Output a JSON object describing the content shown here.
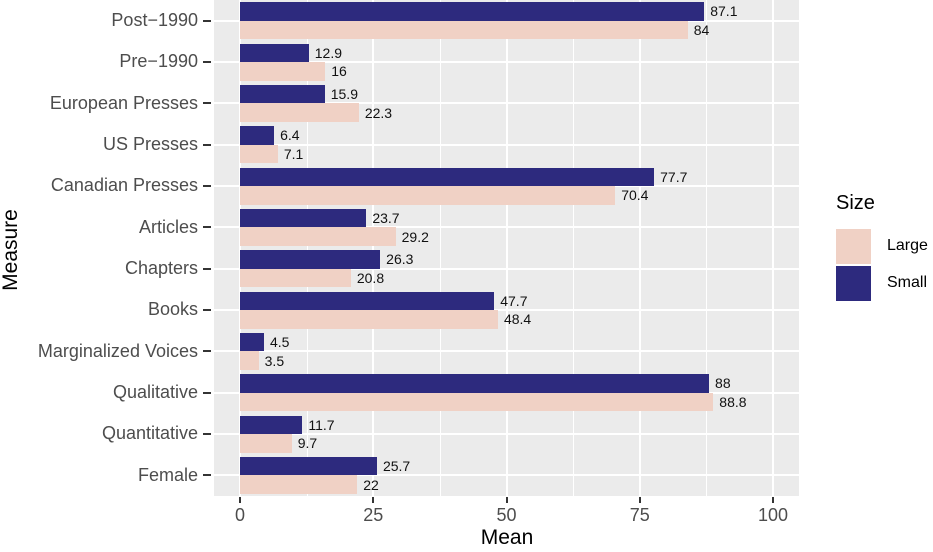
{
  "chart_data": {
    "type": "bar",
    "orientation": "horizontal",
    "title": "",
    "xlabel": "Mean",
    "ylabel": "Measure",
    "categories": [
      "Post−1990",
      "Pre−1990",
      "European Presses",
      "US Presses",
      "Canadian Presses",
      "Articles",
      "Chapters",
      "Books",
      "Marginalized Voices",
      "Qualitative",
      "Quantitative",
      "Female"
    ],
    "series": [
      {
        "name": "Small",
        "color": "#2d2a7e",
        "values": [
          87.1,
          12.9,
          15.9,
          6.4,
          77.7,
          23.7,
          26.3,
          47.7,
          4.5,
          88,
          11.7,
          25.7
        ]
      },
      {
        "name": "Large",
        "color": "#f0d1c5",
        "values": [
          84,
          16,
          22.3,
          7.1,
          70.4,
          29.2,
          20.8,
          48.4,
          3.5,
          88.8,
          9.7,
          22
        ]
      }
    ],
    "bar_order_top_to_bottom": [
      "Small",
      "Large"
    ],
    "value_labels_shown": true,
    "x_ticks": [
      0,
      25,
      50,
      75,
      100
    ],
    "x_minor_ticks": [
      12.5,
      37.5,
      62.5,
      87.5
    ],
    "xlim": [
      -5,
      105
    ],
    "grid": "on",
    "panel_background": "#ebebeb",
    "grid_color": "#ffffff",
    "axis_text_color": "#4d4d4d",
    "tick_mark_color": "#343434",
    "legend": {
      "title": "Size",
      "position": "right",
      "entries": [
        {
          "label": "Large",
          "color": "#f0d1c5"
        },
        {
          "label": "Small",
          "color": "#2d2a7e"
        }
      ]
    }
  }
}
